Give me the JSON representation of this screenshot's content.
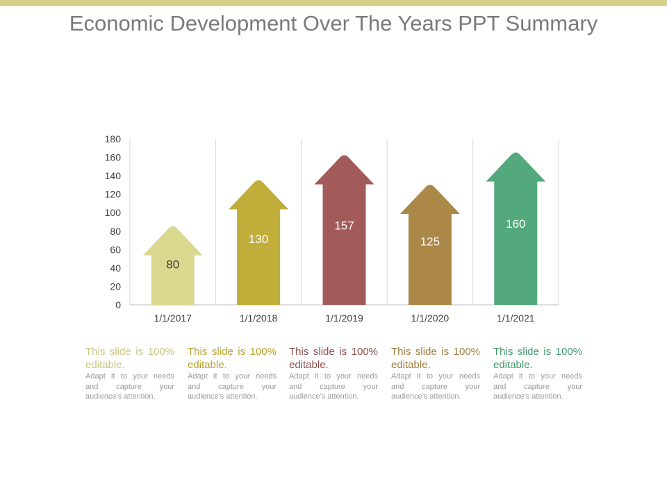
{
  "title": "Economic Development Over The Years PPT Summary",
  "colors": {
    "top_bar": "#d6d08a",
    "gridline": "#d9d9d9",
    "axis": "#bfbfbf"
  },
  "chart_data": {
    "type": "bar",
    "style": "arrow",
    "title": "",
    "xlabel": "",
    "ylabel": "",
    "ylim": [
      0,
      180
    ],
    "yticks": [
      0,
      20,
      40,
      60,
      80,
      100,
      120,
      140,
      160,
      180
    ],
    "categories": [
      "1/1/2017",
      "1/1/2018",
      "1/1/2019",
      "1/1/2020",
      "1/1/2021"
    ],
    "values": [
      80,
      130,
      157,
      125,
      160
    ],
    "colors": [
      "#dad88f",
      "#c1ae3a",
      "#a35b59",
      "#ab8748",
      "#54a97c"
    ],
    "value_label_colors": [
      "#404040",
      "#ffffff",
      "#ffffff",
      "#ffffff",
      "#ffffff"
    ]
  },
  "descriptions": [
    {
      "heading": "This slide is 100% editable.",
      "body": "Adapt it to your needs and capture your audience's attention.",
      "color": "#c9c584"
    },
    {
      "heading": "This slide is 100% editable.",
      "body": "Adapt it to your needs and capture your audience's attention.",
      "color": "#b7a22c"
    },
    {
      "heading": "This slide is 100% editable.",
      "body": "Adapt it to your needs and capture your audience's attention.",
      "color": "#8f4f4d"
    },
    {
      "heading": "This slide is 100% editable.",
      "body": "Adapt it to your needs and capture your audience's attention.",
      "color": "#9f7c3f"
    },
    {
      "heading": "This slide is 100% editable.",
      "body": "Adapt it to your needs and capture your audience's attention.",
      "color": "#3f9a6a"
    }
  ]
}
